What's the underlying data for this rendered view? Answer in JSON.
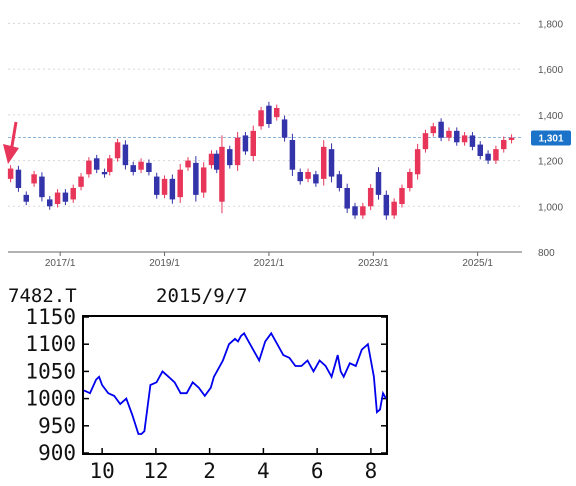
{
  "chart_data": [
    {
      "type": "candlestick",
      "x_ticks": [
        "2017/1",
        "2019/1",
        "2021/1",
        "2023/1",
        "2025/1"
      ],
      "y_ticks": [
        "800",
        "1,000",
        "1,200",
        "1,400",
        "1,600",
        "1,800"
      ],
      "ylim": [
        800,
        1850
      ],
      "xlim": [
        2016.0,
        2025.85
      ],
      "grid": true,
      "reference_line": 1301,
      "last_price_label": "1,301",
      "colors": {
        "up": "#e8365a",
        "down": "#3333aa",
        "reference": "#8fb4d8",
        "badge": "#1a73c9",
        "arrow": "#e8365a"
      },
      "series": [
        [
          2016.05,
          1120,
          1165
        ],
        [
          2016.2,
          1160,
          1080
        ],
        [
          2016.35,
          1050,
          1020
        ],
        [
          2016.5,
          1100,
          1140
        ],
        [
          2016.65,
          1130,
          1040
        ],
        [
          2016.8,
          1030,
          1000
        ],
        [
          2016.95,
          1010,
          1060
        ],
        [
          2017.1,
          1060,
          1020
        ],
        [
          2017.25,
          1030,
          1080
        ],
        [
          2017.4,
          1085,
          1130
        ],
        [
          2017.55,
          1140,
          1200
        ],
        [
          2017.7,
          1210,
          1160
        ],
        [
          2017.85,
          1150,
          1140
        ],
        [
          2017.95,
          1150,
          1210
        ],
        [
          2018.1,
          1210,
          1280
        ],
        [
          2018.25,
          1270,
          1180
        ],
        [
          2018.4,
          1180,
          1150
        ],
        [
          2018.55,
          1160,
          1195
        ],
        [
          2018.7,
          1190,
          1150
        ],
        [
          2018.85,
          1130,
          1050
        ],
        [
          2019.0,
          1050,
          1120
        ],
        [
          2019.15,
          1120,
          1030
        ],
        [
          2019.3,
          1040,
          1160
        ],
        [
          2019.45,
          1170,
          1200
        ],
        [
          2019.6,
          1190,
          1050
        ],
        [
          2019.75,
          1060,
          1170
        ],
        [
          2019.9,
          1180,
          1230
        ],
        [
          2020.0,
          1230,
          1160
        ],
        [
          2020.1,
          1020,
          1260
        ],
        [
          2020.25,
          1250,
          1180
        ],
        [
          2020.4,
          1180,
          1300
        ],
        [
          2020.55,
          1310,
          1240
        ],
        [
          2020.7,
          1220,
          1330
        ],
        [
          2020.85,
          1350,
          1420
        ],
        [
          2021.0,
          1440,
          1360
        ],
        [
          2021.15,
          1390,
          1430
        ],
        [
          2021.3,
          1380,
          1300
        ],
        [
          2021.45,
          1290,
          1160
        ],
        [
          2021.6,
          1150,
          1110
        ],
        [
          2021.75,
          1120,
          1150
        ],
        [
          2021.9,
          1140,
          1100
        ],
        [
          2022.05,
          1120,
          1260
        ],
        [
          2022.2,
          1250,
          1130
        ],
        [
          2022.35,
          1140,
          1080
        ],
        [
          2022.5,
          1080,
          990
        ],
        [
          2022.65,
          1000,
          960
        ],
        [
          2022.8,
          960,
          1000
        ],
        [
          2022.95,
          1000,
          1080
        ],
        [
          2023.1,
          1150,
          1050
        ],
        [
          2023.25,
          1050,
          960
        ],
        [
          2023.4,
          960,
          1020
        ],
        [
          2023.55,
          1010,
          1080
        ],
        [
          2023.7,
          1080,
          1150
        ],
        [
          2023.85,
          1140,
          1250
        ],
        [
          2024.0,
          1250,
          1320
        ],
        [
          2024.15,
          1320,
          1350
        ],
        [
          2024.3,
          1370,
          1300
        ],
        [
          2024.45,
          1300,
          1330
        ],
        [
          2024.6,
          1330,
          1280
        ],
        [
          2024.75,
          1280,
          1310
        ],
        [
          2024.9,
          1310,
          1260
        ],
        [
          2025.05,
          1270,
          1220
        ],
        [
          2025.2,
          1230,
          1200
        ],
        [
          2025.35,
          1200,
          1250
        ],
        [
          2025.5,
          1250,
          1290
        ],
        [
          2025.65,
          1290,
          1300
        ]
      ]
    },
    {
      "type": "line",
      "title": "7482.T",
      "date": "2015/9/7",
      "x_ticks": [
        "10",
        "12",
        "2",
        "4",
        "6",
        "8"
      ],
      "y_ticks": [
        "1150",
        "1100",
        "1050",
        "1000",
        "950",
        "900"
      ],
      "ylim": [
        900,
        1150
      ],
      "xlim": [
        0,
        100
      ],
      "grid": false,
      "colors": {
        "line": "#0000ee",
        "frame": "#000000"
      },
      "x": [
        0,
        2,
        4,
        5,
        6,
        8,
        10,
        12,
        14,
        16,
        18,
        19,
        20,
        22,
        24,
        26,
        28,
        30,
        32,
        34,
        36,
        38,
        40,
        42,
        43,
        44,
        46,
        48,
        50,
        51,
        52,
        53,
        54,
        56,
        58,
        60,
        62,
        64,
        66,
        68,
        70,
        72,
        74,
        76,
        78,
        80,
        82,
        84,
        85,
        86,
        88,
        90,
        92,
        94,
        95,
        96,
        97,
        98,
        99,
        100
      ],
      "values": [
        1015,
        1010,
        1035,
        1040,
        1025,
        1010,
        1005,
        990,
        1000,
        970,
        935,
        935,
        940,
        1025,
        1030,
        1050,
        1040,
        1030,
        1010,
        1010,
        1030,
        1020,
        1005,
        1020,
        1040,
        1050,
        1070,
        1100,
        1110,
        1105,
        1115,
        1120,
        1110,
        1090,
        1070,
        1105,
        1120,
        1100,
        1080,
        1075,
        1060,
        1060,
        1070,
        1050,
        1070,
        1060,
        1040,
        1080,
        1050,
        1040,
        1065,
        1060,
        1090,
        1100,
        1070,
        1040,
        975,
        980,
        1010,
        1000
      ]
    }
  ]
}
